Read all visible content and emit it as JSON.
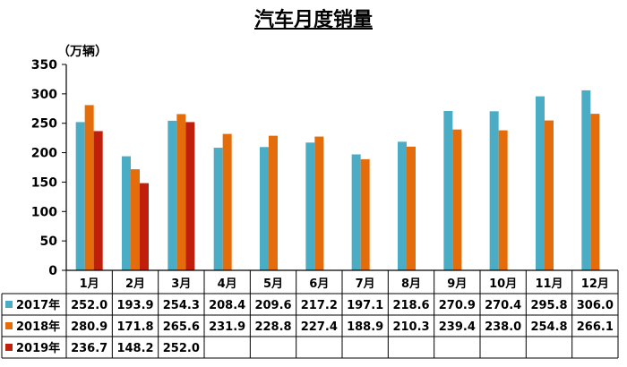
{
  "chart_data": {
    "type": "bar",
    "title": "汽车月度销量",
    "ylabel": "（万辆）",
    "ylim": [
      0,
      350
    ],
    "yticks": [
      0,
      50,
      100,
      150,
      200,
      250,
      300,
      350
    ],
    "categories": [
      "1月",
      "2月",
      "3月",
      "4月",
      "5月",
      "6月",
      "7月",
      "8月",
      "9月",
      "10月",
      "11月",
      "12月"
    ],
    "series": [
      {
        "name": "2017年",
        "color": "#4BACC6",
        "values": [
          252.0,
          193.9,
          254.3,
          208.4,
          209.6,
          217.2,
          197.1,
          218.6,
          270.9,
          270.4,
          295.8,
          306.0
        ],
        "labels": [
          "252.0",
          "193.9",
          "254.3",
          "208.4",
          "209.6",
          "217.2",
          "197.1",
          "218.6",
          "270.9",
          "270.4",
          "295.8",
          "306.0"
        ]
      },
      {
        "name": "2018年",
        "color": "#E46C0A",
        "values": [
          280.9,
          171.8,
          265.6,
          231.9,
          228.8,
          227.4,
          188.9,
          210.3,
          239.4,
          238.0,
          254.8,
          266.1
        ],
        "labels": [
          "280.9",
          "171.8",
          "265.6",
          "231.9",
          "228.8",
          "227.4",
          "188.9",
          "210.3",
          "239.4",
          "238.0",
          "254.8",
          "266.1"
        ]
      },
      {
        "name": "2019年",
        "color": "#C0200B",
        "values": [
          236.7,
          148.2,
          252.0,
          null,
          null,
          null,
          null,
          null,
          null,
          null,
          null,
          null
        ],
        "labels": [
          "236.7",
          "148.2",
          "252.0",
          "",
          "",
          "",
          "",
          "",
          "",
          "",
          "",
          ""
        ]
      }
    ],
    "grid": false,
    "legend": "data-table"
  }
}
